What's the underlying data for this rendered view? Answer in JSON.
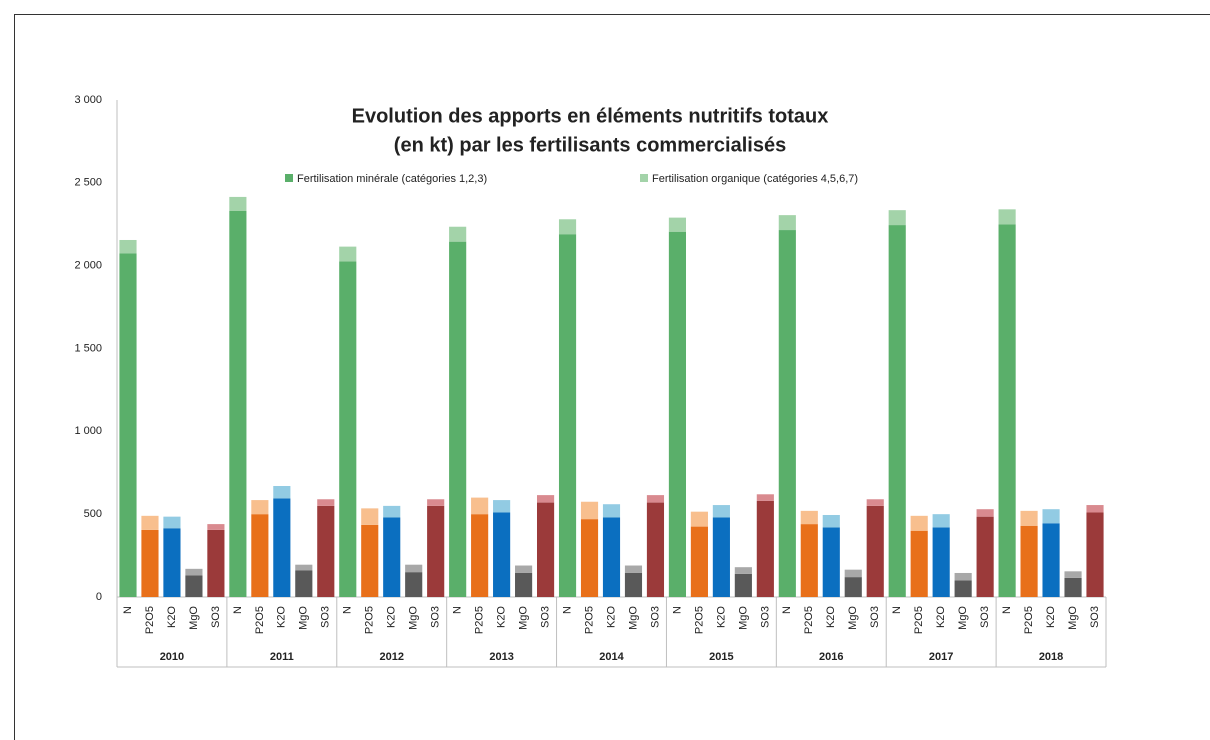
{
  "chart_data": {
    "type": "stacked-grouped-bar",
    "title": [
      "Evolution des apports en éléments nutritifs totaux",
      "(en kt) par les fertilisants commercialisés"
    ],
    "groups": [
      "2010",
      "2011",
      "2012",
      "2013",
      "2014",
      "2015",
      "2016",
      "2017",
      "2018"
    ],
    "categories": [
      "N",
      "P2O5",
      "K2O",
      "MgO",
      "SO3"
    ],
    "series": [
      {
        "name": "Fertilisation minérale (catégories 1,2,3)",
        "color": [
          "#5aaf6a",
          "#e8701a",
          "#0b6fc0",
          "#595959",
          "#9b3a3a"
        ],
        "values": [
          [
            2075,
            405,
            415,
            130,
            405
          ],
          [
            2330,
            500,
            595,
            160,
            550
          ],
          [
            2025,
            435,
            480,
            150,
            550
          ],
          [
            2145,
            500,
            510,
            145,
            570
          ],
          [
            2190,
            470,
            480,
            145,
            570
          ],
          [
            2205,
            425,
            480,
            140,
            580
          ],
          [
            2215,
            440,
            420,
            120,
            550
          ],
          [
            2245,
            400,
            420,
            100,
            485
          ],
          [
            2250,
            430,
            445,
            115,
            510
          ]
        ]
      },
      {
        "name": "Fertilisation organique (catégories 4,5,6,7)",
        "color": [
          "#a3d3a9",
          "#f8bf8e",
          "#92cbe3",
          "#a8a8a8",
          "#d98a8f"
        ],
        "values": [
          [
            80,
            85,
            70,
            40,
            35
          ],
          [
            85,
            85,
            75,
            35,
            40
          ],
          [
            90,
            100,
            70,
            45,
            40
          ],
          [
            90,
            100,
            75,
            45,
            45
          ],
          [
            90,
            105,
            80,
            45,
            45
          ],
          [
            85,
            90,
            75,
            40,
            40
          ],
          [
            90,
            80,
            75,
            45,
            40
          ],
          [
            90,
            90,
            80,
            45,
            45
          ],
          [
            90,
            90,
            85,
            40,
            45
          ]
        ]
      }
    ],
    "ylim": [
      0,
      3000
    ],
    "yticks": [
      0,
      500,
      {
        "value": 1000,
        "label": "1 000"
      },
      {
        "value": 1500,
        "label": "1 500"
      },
      {
        "value": 2000,
        "label": "2 000"
      },
      {
        "value": 2500,
        "label": "2 500"
      },
      {
        "value": 3000,
        "label": "3 000"
      }
    ],
    "grid": false
  }
}
